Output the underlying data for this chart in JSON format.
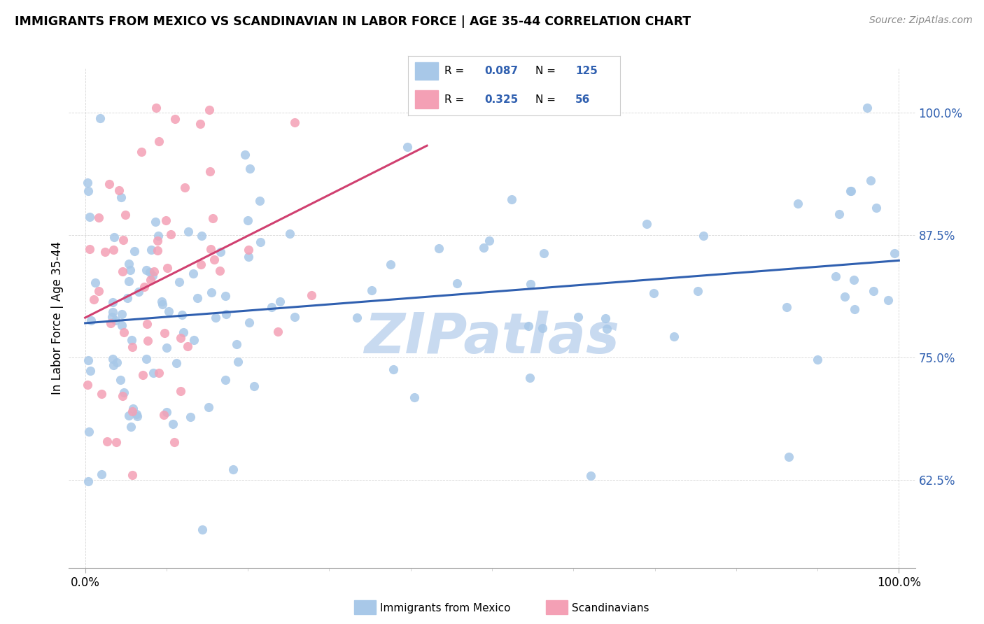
{
  "title": "IMMIGRANTS FROM MEXICO VS SCANDINAVIAN IN LABOR FORCE | AGE 35-44 CORRELATION CHART",
  "source": "Source: ZipAtlas.com",
  "ylabel": "In Labor Force | Age 35-44",
  "ytick_labels": [
    "100.0%",
    "87.5%",
    "75.0%",
    "62.5%"
  ],
  "ytick_values": [
    1.0,
    0.875,
    0.75,
    0.625
  ],
  "xlim": [
    -0.02,
    1.02
  ],
  "ylim": [
    0.535,
    1.045
  ],
  "legend_blue_label": "Immigrants from Mexico",
  "legend_pink_label": "Scandinavians",
  "r_blue": "0.087",
  "n_blue": "125",
  "r_pink": "0.325",
  "n_pink": "56",
  "blue_scatter_color": "#a8c8e8",
  "pink_scatter_color": "#f4a0b5",
  "blue_line_color": "#3060b0",
  "pink_line_color": "#d04070",
  "blue_text_color": "#3060b0",
  "watermark_color": "#c8daf0",
  "background_color": "#ffffff",
  "grid_color": "#cccccc"
}
